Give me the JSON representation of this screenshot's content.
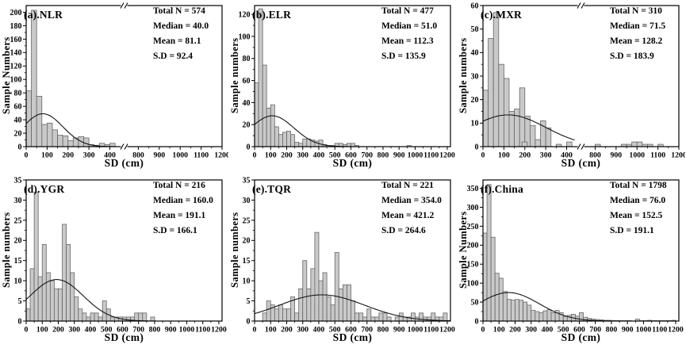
{
  "figure": {
    "background": "#ffffff",
    "bar_fill": "#c9c9c9",
    "bar_stroke": "#666666",
    "curve_color": "#151515",
    "axis_color": "#000000",
    "xlabel": "SD (cm)",
    "x_unit": "cm"
  },
  "chart_data": [
    {
      "type": "bar",
      "title": "(a).NLR",
      "region": "NLR",
      "stats": [
        "Total N = 574",
        "Median = 40.0",
        "Mean = 81.1",
        "S.D = 92.4"
      ],
      "ylabel": "Sample Numbers",
      "xlabel": "SD (cm)",
      "bin_width": 25,
      "bin_start": 0,
      "ylim": [
        0,
        210
      ],
      "yticks": [
        0,
        20,
        40,
        60,
        80,
        100,
        120,
        140,
        160,
        180,
        200
      ],
      "axis_break": true,
      "x_segment1": {
        "range": [
          0,
          440
        ],
        "ticks": [
          0,
          100,
          200,
          300,
          400
        ]
      },
      "x_segment2": {
        "range": [
          760,
          1200
        ],
        "ticks": [
          800,
          900,
          1000,
          1100,
          1200
        ]
      },
      "values": [
        83,
        203,
        75,
        33,
        35,
        25,
        17,
        16,
        9,
        13,
        15,
        13,
        3,
        2,
        5,
        3,
        5,
        5,
        0,
        0,
        0,
        0,
        0,
        0,
        0,
        0,
        0,
        0,
        0,
        0,
        0,
        0,
        0,
        0,
        0,
        0,
        0,
        0,
        0,
        0,
        0,
        0,
        0,
        0,
        0,
        0,
        0,
        0
      ],
      "curve": {
        "shape": "gaussian",
        "mean": 80,
        "sigma": 95,
        "peak": 49
      }
    },
    {
      "type": "bar",
      "title": "(b).ELR",
      "region": "ELR",
      "stats": [
        "Total N = 477",
        "Median = 51.0",
        "Mean = 112.3",
        "S.D = 135.9"
      ],
      "ylabel": "Sample numbers",
      "xlabel": "SD (cm)",
      "bin_width": 25,
      "bin_start": 0,
      "ylim": [
        0,
        128
      ],
      "yticks": [
        0,
        20,
        40,
        60,
        80,
        100,
        120
      ],
      "axis_break": false,
      "xlim": [
        0,
        1220
      ],
      "xticks": [
        0,
        100,
        200,
        300,
        400,
        500,
        600,
        700,
        800,
        900,
        1000,
        1100,
        1200
      ],
      "values": [
        58,
        125,
        74,
        35,
        38,
        18,
        11,
        13,
        14,
        11,
        4,
        3,
        7,
        7,
        6,
        5,
        6,
        2,
        1,
        1,
        3,
        3,
        2,
        3,
        3,
        1,
        0,
        0,
        0,
        0,
        0,
        0,
        0,
        0,
        0,
        0,
        0,
        0,
        1,
        0,
        0,
        0,
        0,
        0,
        0,
        0,
        0,
        0
      ],
      "curve": {
        "shape": "gaussian",
        "mean": 110,
        "sigma": 135,
        "peak": 28
      }
    },
    {
      "type": "bar",
      "title": "(c).MXR",
      "region": "MXR",
      "stats": [
        "Total N = 310",
        "Median = 71.5",
        "Mean = 128.2",
        "S.D = 183.9"
      ],
      "ylabel": "Sample numbers",
      "xlabel": "SD (cm)",
      "bin_width": 25,
      "bin_start": 0,
      "ylim": [
        0,
        60
      ],
      "yticks": [
        0,
        10,
        20,
        30,
        40,
        50,
        60
      ],
      "axis_break": true,
      "x_segment1": {
        "range": [
          0,
          440
        ],
        "ticks": [
          0,
          100,
          200,
          300,
          400
        ]
      },
      "x_segment2": {
        "range": [
          760,
          1200
        ],
        "ticks": [
          800,
          900,
          1000,
          1100,
          1200
        ]
      },
      "values": [
        24,
        46,
        57,
        35,
        29,
        15,
        16,
        25,
        13,
        9,
        3,
        11,
        8,
        0,
        1,
        0,
        2,
        1,
        2,
        0,
        0,
        0,
        0,
        0,
        0,
        0,
        0,
        0,
        0,
        0,
        0,
        0,
        1,
        0,
        0,
        0,
        0,
        1,
        1,
        2,
        2,
        1,
        1,
        0,
        1,
        0,
        0,
        0
      ],
      "curve": {
        "shape": "gaussian",
        "mean": 120,
        "sigma": 180,
        "peak": 13.5
      }
    },
    {
      "type": "bar",
      "title": "(d).YGR",
      "region": "YGR",
      "stats": [
        "Total N = 216",
        "Median = 160.0",
        "Mean = 191.1",
        "S.D = 166.1"
      ],
      "ylabel": "Sample numbers",
      "xlabel": "SD (cm)",
      "bin_width": 25,
      "bin_start": 0,
      "ylim": [
        0,
        35
      ],
      "yticks": [
        0,
        5,
        10,
        15,
        20,
        25,
        30,
        35
      ],
      "axis_break": false,
      "xlim": [
        0,
        1220
      ],
      "xticks": [
        0,
        100,
        200,
        300,
        400,
        500,
        600,
        700,
        800,
        900,
        1000,
        1100,
        1200
      ],
      "values": [
        3,
        13,
        32,
        11,
        19,
        12,
        10,
        8,
        8,
        24,
        19,
        12,
        6,
        3,
        2,
        1,
        2,
        2,
        1,
        5,
        3,
        1,
        1,
        1,
        1,
        1,
        1,
        2,
        2,
        2,
        0,
        1,
        0,
        0,
        0,
        0,
        0,
        0,
        0,
        0,
        0,
        0,
        0,
        0,
        0,
        0,
        0,
        0
      ],
      "curve": {
        "shape": "gaussian",
        "mean": 190,
        "sigma": 166,
        "peak": 10.3
      }
    },
    {
      "type": "bar",
      "title": "(e).TQR",
      "region": "TQR",
      "stats": [
        "Total N = 221",
        "Median = 354.0",
        "Mean = 421.2",
        "S.D = 264.6"
      ],
      "ylabel": "Sample numbers",
      "xlabel": "SD (cm)",
      "bin_width": 25,
      "bin_start": 0,
      "ylim": [
        0,
        35
      ],
      "yticks": [
        0,
        5,
        10,
        15,
        20,
        25,
        30,
        35
      ],
      "axis_break": false,
      "xlim": [
        0,
        1220
      ],
      "xticks": [
        0,
        100,
        200,
        300,
        400,
        500,
        600,
        700,
        800,
        900,
        1000,
        1100,
        1200
      ],
      "values": [
        0,
        0,
        2,
        5,
        4,
        3,
        4,
        3,
        3,
        6,
        2,
        8,
        15,
        8,
        13,
        22,
        10,
        12,
        6,
        4,
        17,
        8,
        9,
        9,
        5,
        2,
        2,
        1,
        3,
        1,
        1,
        2,
        2,
        1,
        0,
        1,
        2,
        1,
        1,
        2,
        1,
        2,
        1,
        1,
        2,
        1,
        1,
        2
      ],
      "curve": {
        "shape": "gaussian",
        "mean": 420,
        "sigma": 265,
        "peak": 6.5
      }
    },
    {
      "type": "bar",
      "title": "(f).China",
      "region": "China",
      "stats": [
        "Total N = 1798",
        "Median = 76.0",
        "Mean = 152.5",
        "S.D = 191.1"
      ],
      "ylabel": "Sample Numbers",
      "xlabel": "SD (cm)",
      "bin_width": 25,
      "bin_start": 0,
      "ylim": [
        0,
        372
      ],
      "yticks": [
        0,
        50,
        100,
        150,
        200,
        250,
        300,
        350
      ],
      "axis_break": false,
      "xlim": [
        0,
        1220
      ],
      "xticks": [
        0,
        100,
        200,
        300,
        400,
        500,
        600,
        700,
        800,
        900,
        1000,
        1100,
        1200
      ],
      "values": [
        232,
        360,
        221,
        126,
        113,
        78,
        57,
        55,
        57,
        55,
        50,
        42,
        28,
        25,
        22,
        27,
        30,
        22,
        28,
        22,
        12,
        15,
        18,
        13,
        22,
        10,
        7,
        5,
        4,
        3,
        2,
        2,
        1,
        1,
        1,
        1,
        1,
        0,
        5,
        1,
        1,
        2,
        1,
        1,
        1,
        1,
        1,
        2
      ],
      "curve": {
        "shape": "gaussian",
        "mean": 160,
        "sigma": 191,
        "peak": 75
      }
    }
  ]
}
